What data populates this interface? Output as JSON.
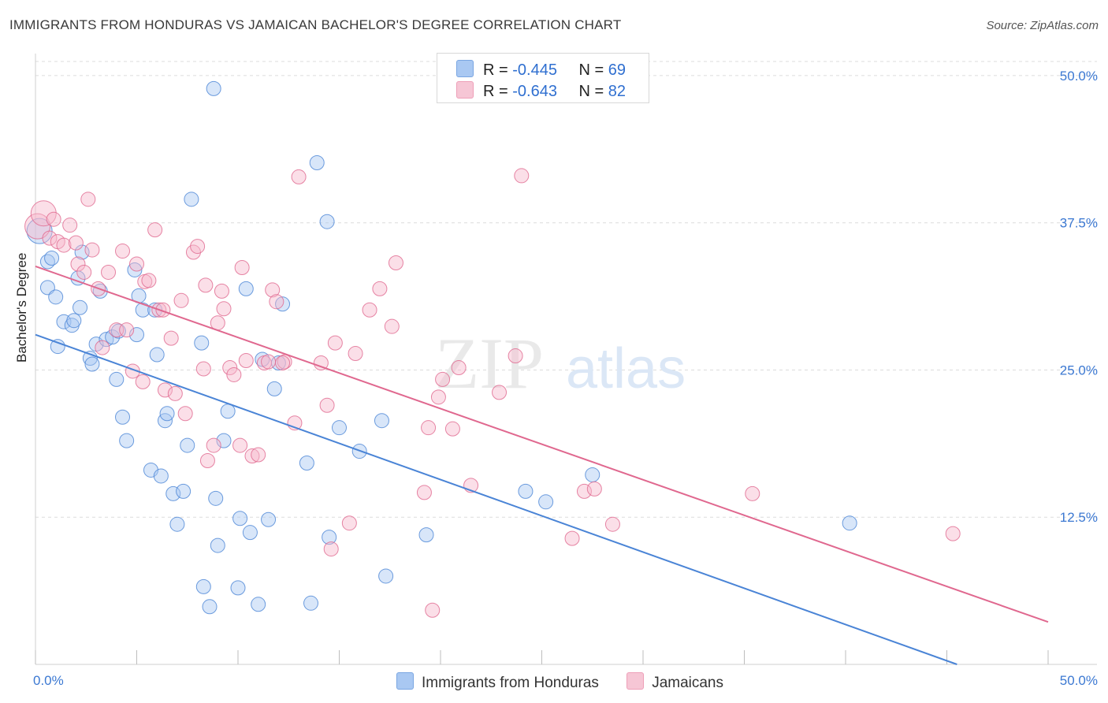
{
  "header": {
    "title": "IMMIGRANTS FROM HONDURAS VS JAMAICAN BACHELOR'S DEGREE CORRELATION CHART",
    "source": "Source: ZipAtlas.com"
  },
  "watermark": {
    "zip": "ZIP",
    "atlas": "atlas"
  },
  "legend_top": [
    {
      "r_label": "R =",
      "r_value": "-0.445",
      "n_label": "N =",
      "n_value": "69",
      "color": "#a9c8f2"
    },
    {
      "r_label": "R =",
      "r_value": "-0.643",
      "n_label": "N =",
      "n_value": "82",
      "color": "#f6b8cb"
    }
  ],
  "legend_bottom": [
    {
      "label": "Immigrants from Honduras",
      "color": "#a9c8f2"
    },
    {
      "label": "Jamaicans",
      "color": "#f6b8cb"
    }
  ],
  "chart_data": {
    "type": "scatter",
    "title": "IMMIGRANTS FROM HONDURAS VS JAMAICAN BACHELOR'S DEGREE CORRELATION CHART",
    "xlabel": "",
    "ylabel": "Bachelor's Degree",
    "xlim": [
      0,
      50
    ],
    "ylim": [
      0,
      50
    ],
    "x_tick_labels": [
      "0.0%",
      "50.0%"
    ],
    "y_ticks": [
      12.5,
      25.0,
      37.5,
      50.0
    ],
    "y_tick_labels": [
      "12.5%",
      "25.0%",
      "37.5%",
      "50.0%"
    ],
    "grid": true,
    "legend_position": "top-center",
    "series": [
      {
        "name": "Immigrants from Honduras",
        "color": "#4a84d6",
        "fill": "#a9c8f2",
        "trend": {
          "x": [
            0,
            45.5
          ],
          "y": [
            28.0,
            0.0
          ]
        },
        "points": [
          [
            0.2,
            36.8
          ],
          [
            0.6,
            34.2
          ],
          [
            0.8,
            34.5
          ],
          [
            0.6,
            32.0
          ],
          [
            1.0,
            31.2
          ],
          [
            1.1,
            27.0
          ],
          [
            1.4,
            29.1
          ],
          [
            1.8,
            28.8
          ],
          [
            1.9,
            29.2
          ],
          [
            2.2,
            30.3
          ],
          [
            2.1,
            32.8
          ],
          [
            2.3,
            35.0
          ],
          [
            3.2,
            31.7
          ],
          [
            3.0,
            27.2
          ],
          [
            2.7,
            26.0
          ],
          [
            2.8,
            25.5
          ],
          [
            3.5,
            27.6
          ],
          [
            3.8,
            27.8
          ],
          [
            4.0,
            24.2
          ],
          [
            4.1,
            28.3
          ],
          [
            4.3,
            21.0
          ],
          [
            4.5,
            19.0
          ],
          [
            4.9,
            33.5
          ],
          [
            5.0,
            28.0
          ],
          [
            5.1,
            31.3
          ],
          [
            5.3,
            30.1
          ],
          [
            5.7,
            16.5
          ],
          [
            5.9,
            30.1
          ],
          [
            6.0,
            26.3
          ],
          [
            6.2,
            16.0
          ],
          [
            6.4,
            20.7
          ],
          [
            6.5,
            21.3
          ],
          [
            6.8,
            14.5
          ],
          [
            7.0,
            11.9
          ],
          [
            7.3,
            14.7
          ],
          [
            7.5,
            18.6
          ],
          [
            7.7,
            39.5
          ],
          [
            8.2,
            27.3
          ],
          [
            8.6,
            4.9
          ],
          [
            8.3,
            6.6
          ],
          [
            8.8,
            48.9
          ],
          [
            8.9,
            14.1
          ],
          [
            9.0,
            10.1
          ],
          [
            9.3,
            19.0
          ],
          [
            9.5,
            21.5
          ],
          [
            10.0,
            6.5
          ],
          [
            10.1,
            12.4
          ],
          [
            10.4,
            31.9
          ],
          [
            10.6,
            11.2
          ],
          [
            11.0,
            5.1
          ],
          [
            11.2,
            25.9
          ],
          [
            11.5,
            12.3
          ],
          [
            11.8,
            23.4
          ],
          [
            12.0,
            25.6
          ],
          [
            12.2,
            30.6
          ],
          [
            13.4,
            17.1
          ],
          [
            13.6,
            5.2
          ],
          [
            13.9,
            42.6
          ],
          [
            14.4,
            37.6
          ],
          [
            14.5,
            10.8
          ],
          [
            15.0,
            20.1
          ],
          [
            16.0,
            18.1
          ],
          [
            17.1,
            20.7
          ],
          [
            17.3,
            7.5
          ],
          [
            19.3,
            11.0
          ],
          [
            24.2,
            14.7
          ],
          [
            25.2,
            13.8
          ],
          [
            27.5,
            16.1
          ],
          [
            40.2,
            12.0
          ]
        ]
      },
      {
        "name": "Jamaicans",
        "color": "#e0688f",
        "fill": "#f6b8cb",
        "trend": {
          "x": [
            0,
            50
          ],
          "y": [
            33.8,
            3.6
          ]
        },
        "points": [
          [
            0.1,
            37.2
          ],
          [
            0.4,
            38.3
          ],
          [
            0.7,
            36.2
          ],
          [
            0.9,
            37.8
          ],
          [
            1.1,
            35.9
          ],
          [
            1.4,
            35.6
          ],
          [
            1.7,
            37.3
          ],
          [
            2.0,
            35.8
          ],
          [
            2.1,
            34.0
          ],
          [
            2.4,
            33.3
          ],
          [
            2.6,
            39.5
          ],
          [
            2.8,
            35.2
          ],
          [
            3.1,
            31.9
          ],
          [
            3.3,
            26.9
          ],
          [
            3.6,
            33.3
          ],
          [
            4.0,
            28.4
          ],
          [
            4.3,
            35.1
          ],
          [
            4.5,
            28.4
          ],
          [
            4.8,
            24.9
          ],
          [
            5.0,
            34.0
          ],
          [
            5.3,
            24.0
          ],
          [
            5.4,
            32.5
          ],
          [
            5.6,
            32.6
          ],
          [
            5.9,
            36.9
          ],
          [
            6.1,
            30.1
          ],
          [
            6.3,
            30.1
          ],
          [
            6.4,
            23.3
          ],
          [
            6.7,
            27.7
          ],
          [
            6.9,
            23.0
          ],
          [
            7.2,
            30.9
          ],
          [
            7.4,
            21.3
          ],
          [
            7.8,
            35.0
          ],
          [
            8.0,
            35.5
          ],
          [
            8.3,
            25.1
          ],
          [
            8.4,
            32.2
          ],
          [
            8.5,
            17.3
          ],
          [
            8.8,
            18.6
          ],
          [
            9.0,
            29.0
          ],
          [
            9.2,
            31.7
          ],
          [
            9.6,
            25.2
          ],
          [
            9.8,
            24.6
          ],
          [
            10.1,
            18.6
          ],
          [
            10.2,
            33.7
          ],
          [
            10.4,
            25.8
          ],
          [
            10.7,
            17.7
          ],
          [
            11.0,
            17.8
          ],
          [
            11.3,
            25.6
          ],
          [
            11.5,
            25.7
          ],
          [
            11.7,
            31.8
          ],
          [
            11.9,
            30.8
          ],
          [
            12.3,
            25.7
          ],
          [
            12.8,
            20.5
          ],
          [
            13.0,
            41.4
          ],
          [
            14.1,
            25.6
          ],
          [
            14.4,
            22.0
          ],
          [
            14.6,
            9.8
          ],
          [
            14.8,
            27.3
          ],
          [
            15.5,
            12.0
          ],
          [
            15.8,
            26.4
          ],
          [
            16.5,
            30.1
          ],
          [
            17.0,
            31.9
          ],
          [
            17.6,
            28.7
          ],
          [
            17.8,
            34.1
          ],
          [
            19.2,
            14.6
          ],
          [
            19.4,
            20.1
          ],
          [
            19.6,
            4.6
          ],
          [
            19.9,
            22.7
          ],
          [
            20.1,
            24.2
          ],
          [
            20.6,
            20.0
          ],
          [
            20.9,
            25.2
          ],
          [
            21.5,
            15.2
          ],
          [
            22.9,
            23.1
          ],
          [
            23.7,
            26.2
          ],
          [
            24.0,
            41.5
          ],
          [
            26.5,
            10.7
          ],
          [
            27.1,
            14.7
          ],
          [
            27.6,
            14.9
          ],
          [
            28.5,
            11.9
          ],
          [
            35.4,
            14.5
          ],
          [
            45.3,
            11.1
          ],
          [
            9.3,
            30.2
          ],
          [
            12.2,
            25.6
          ]
        ]
      }
    ]
  }
}
